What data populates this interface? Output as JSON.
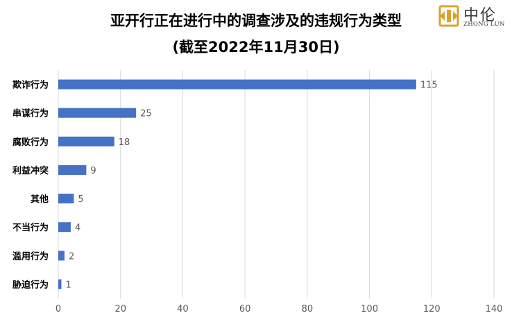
{
  "title_line1": "亚开行正在进行中的调查涉及的违规行为类型",
  "title_line2": "(截至2022年11月30日)",
  "logo": {
    "chinese": "中伦",
    "english": "ZHONG LUN",
    "color": "#D9A22B"
  },
  "chart_data": {
    "type": "bar",
    "orientation": "horizontal",
    "title": "亚开行正在进行中的调查涉及的违规行为类型 (截至2022年11月30日)",
    "categories": [
      "欺诈行为",
      "串谋行为",
      "腐败行为",
      "利益冲突",
      "其他",
      "不当行为",
      "滥用行为",
      "胁迫行为"
    ],
    "values": [
      115,
      25,
      18,
      9,
      5,
      4,
      2,
      1
    ],
    "value_labels": [
      "115",
      "25",
      "18",
      "9",
      "5",
      "4",
      "2",
      "1"
    ],
    "xlim": [
      0,
      140
    ],
    "x_ticks": [
      0,
      20,
      40,
      60,
      80,
      100,
      120,
      140
    ],
    "x_tick_labels": [
      "0",
      "20",
      "40",
      "60",
      "80",
      "100",
      "120",
      "140"
    ],
    "xlabel": "",
    "ylabel": "",
    "grid": true,
    "bar_color": "#4472C4",
    "grid_color": "#D9D9D9"
  }
}
